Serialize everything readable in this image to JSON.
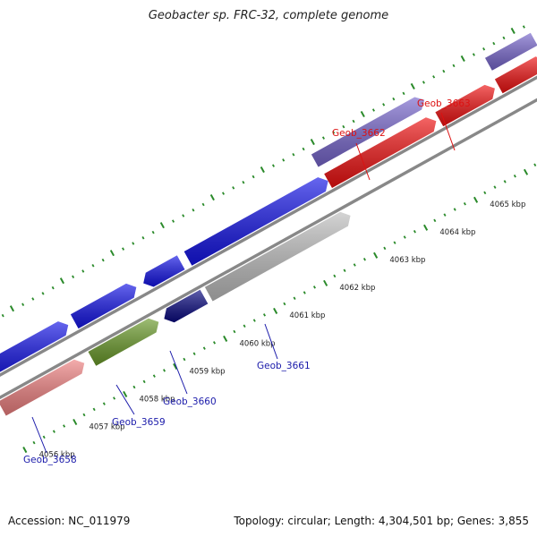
{
  "title": "Geobacter sp. FRC-32, complete genome",
  "footer": {
    "accession": "Accession: NC_011979",
    "topology": "Topology: circular; Length: 4,304,501 bp; Genes: 3,855"
  },
  "colors": {
    "strand_line": "#888888",
    "tick": "#2a8a2a",
    "blue": "#1414e6",
    "red": "#ee1111",
    "pink": "#ee8080",
    "purple": "#7766cc",
    "olive": "#6a9a2a",
    "navy": "#0a0a80",
    "gray": "#bdbdbd",
    "blue_label": "#1a1aaa",
    "red_label": "#dd1111"
  },
  "kbp_labels": [
    "4056 kbp",
    "4057 kbp",
    "4058 kbp",
    "4059 kbp",
    "4060 kbp",
    "4061 kbp",
    "4062 kbp",
    "4063 kbp",
    "4064 kbp",
    "4065 kbp"
  ],
  "genes": [
    {
      "label": "Geob_3658",
      "color": "blue"
    },
    {
      "label": "Geob_3659",
      "color": "blue"
    },
    {
      "label": "Geob_3660",
      "color": "blue"
    },
    {
      "label": "Geob_3661",
      "color": "blue"
    },
    {
      "label": "Geob_3662",
      "color": "red"
    },
    {
      "label": "Geob_3663",
      "color": "red"
    }
  ]
}
